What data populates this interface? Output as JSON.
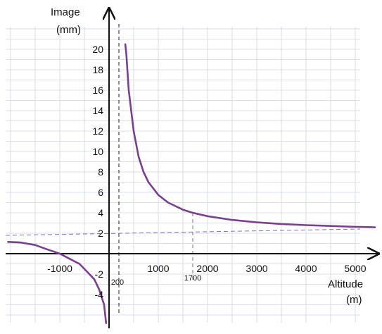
{
  "chart_data": {
    "type": "line",
    "xlabel": "Altitude",
    "xunit": "(m)",
    "ylabel": "Image",
    "yunit": "(mm)",
    "xlim": [
      -2050,
      5500
    ],
    "ylim": [
      -7,
      22
    ],
    "grid": true,
    "x_ticks": [
      -1000,
      1000,
      2000,
      3000,
      4000,
      5000
    ],
    "y_ticks": [
      -4,
      -2,
      2,
      4,
      6,
      8,
      10,
      12,
      14,
      16,
      18,
      20
    ],
    "tick_labels_x": [
      "-1000",
      "1000",
      "2000",
      "3000",
      "4000",
      "5000"
    ],
    "tick_labels_y": [
      "-4",
      "-2",
      "2",
      "4",
      "6",
      "8",
      "10",
      "12",
      "14",
      "16",
      "18",
      "20"
    ],
    "extra_x_labels": [
      "200",
      "1700"
    ],
    "vertical_asymptote_x": 200,
    "horizontal_asymptote_y": 2,
    "marked_point": {
      "x": 1700,
      "y": 4
    },
    "series": [
      {
        "color": "#7b3f8f",
        "branch_right": {
          "x": [
            330,
            350,
            400,
            450,
            500,
            600,
            700,
            800,
            1000,
            1200,
            1500,
            1700,
            2000,
            2500,
            3000,
            3500,
            4000,
            4500,
            5000,
            5400
          ],
          "y": [
            20.5,
            19.6,
            16.0,
            14.0,
            12.0,
            9.5,
            8.0,
            7.0,
            5.75,
            5.0,
            4.3,
            4.0,
            3.67,
            3.3,
            3.07,
            2.9,
            2.79,
            2.71,
            2.63,
            2.58
          ]
        },
        "branch_left": {
          "x": [
            -2050,
            -1800,
            -1500,
            -1300,
            -1000,
            -800,
            -600,
            -400,
            -300,
            -200,
            -100,
            -60
          ],
          "y": [
            1.15,
            1.1,
            0.85,
            0.5,
            0.0,
            -0.5,
            -1.0,
            -2.0,
            -2.5,
            -3.5,
            -5.0,
            -6.8
          ]
        }
      }
    ]
  }
}
